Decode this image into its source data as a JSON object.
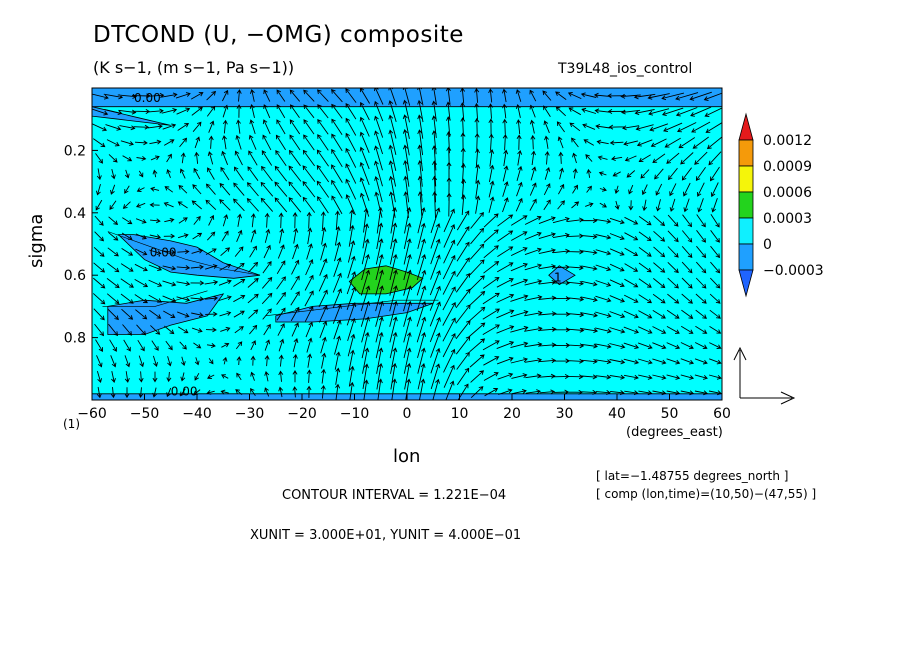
{
  "header": {
    "title": "DTCOND (U, −OMG) composite",
    "subtitle": "(K s−1, (m s−1, Pa s−1))",
    "run_name": "T39L48_ios_control"
  },
  "axes": {
    "xlabel": "lon",
    "xunits": "(degrees_east)",
    "ylabel": "sigma",
    "footnote": "(1)"
  },
  "info": {
    "lat": "[ lat=−1.48755 degrees_north ]",
    "comp": "[ comp (lon,time)=(10,50)−(47,55) ]",
    "contour_interval": "CONTOUR INTERVAL = 1.221E−04",
    "units": "XUNIT = 3.000E+01, YUNIT = 4.000E−01"
  },
  "chart_data": {
    "type": "heatmap",
    "subtype": "contour-fill with vector overlay",
    "x_range": [
      -60,
      60
    ],
    "y_range": [
      1.0,
      0.0
    ],
    "y_axis_inverted": true,
    "x_ticks": [
      -60,
      -50,
      -40,
      -30,
      -20,
      -10,
      0,
      10,
      20,
      30,
      40,
      50,
      60
    ],
    "x_tick_labels": [
      "−60",
      "−50",
      "−40",
      "−30",
      "−20",
      "−10",
      "0",
      "10",
      "20",
      "30",
      "40",
      "50",
      "60"
    ],
    "y_ticks": [
      0.2,
      0.4,
      0.6,
      0.8
    ],
    "y_tick_labels": [
      "0.2",
      "0.4",
      "0.6",
      "0.8"
    ],
    "colorbar": {
      "levels": [
        "0.0012",
        "0.0009",
        "0.0006",
        "0.0003",
        "0",
        "−0.0003"
      ],
      "colors": [
        "#e41a1c",
        "#f59a0a",
        "#f5f50a",
        "#23d31d",
        "#0ff0ff",
        "#1fa0ff",
        "#1f64ff"
      ]
    },
    "background_color": "#00ffff",
    "contour_labels": [
      {
        "x": -52,
        "y": 0.045,
        "text": "0.00"
      },
      {
        "x": -49,
        "y": 0.54,
        "text": "0.00"
      },
      {
        "x": -45,
        "y": 0.985,
        "text": "0.00"
      },
      {
        "x": 28,
        "y": 0.62,
        "text": "1"
      }
    ],
    "regions": [
      {
        "color": "#1fa0ff",
        "points": [
          [
            -60,
            0.0
          ],
          [
            60,
            0.0
          ],
          [
            60,
            0.06
          ],
          [
            -60,
            0.06
          ]
        ]
      },
      {
        "color": "#1fa0ff",
        "points": [
          [
            -60,
            0.06
          ],
          [
            -50,
            0.1
          ],
          [
            -45,
            0.12
          ],
          [
            -55,
            0.1
          ],
          [
            -60,
            0.09
          ]
        ]
      },
      {
        "color": "#1fa0ff",
        "points": [
          [
            -55,
            0.47
          ],
          [
            -50,
            0.55
          ],
          [
            -45,
            0.59
          ],
          [
            -40,
            0.6
          ],
          [
            -33,
            0.61
          ],
          [
            -28,
            0.6
          ],
          [
            -35,
            0.56
          ],
          [
            -40,
            0.51
          ],
          [
            -45,
            0.49
          ],
          [
            -52,
            0.47
          ]
        ]
      },
      {
        "color": "#1fa0ff",
        "points": [
          [
            -57,
            0.7
          ],
          [
            -50,
            0.68
          ],
          [
            -42,
            0.69
          ],
          [
            -35,
            0.66
          ],
          [
            -38,
            0.73
          ],
          [
            -45,
            0.76
          ],
          [
            -50,
            0.79
          ],
          [
            -57,
            0.79
          ]
        ]
      },
      {
        "color": "#1fa0ff",
        "points": [
          [
            -25,
            0.73
          ],
          [
            -18,
            0.7
          ],
          [
            -10,
            0.69
          ],
          [
            -2,
            0.69
          ],
          [
            5,
            0.69
          ],
          [
            0,
            0.72
          ],
          [
            -8,
            0.74
          ],
          [
            -18,
            0.75
          ],
          [
            -25,
            0.75
          ]
        ]
      },
      {
        "color": "#1fa0ff",
        "points": [
          [
            27,
            0.6
          ],
          [
            29,
            0.57
          ],
          [
            32,
            0.6
          ],
          [
            29,
            0.63
          ]
        ]
      },
      {
        "color": "#1fa0ff",
        "points": [
          [
            -60,
            0.98
          ],
          [
            60,
            0.98
          ],
          [
            60,
            1.0
          ],
          [
            -60,
            1.0
          ]
        ]
      },
      {
        "color": "#23d31d",
        "points": [
          [
            -11,
            0.62
          ],
          [
            -8,
            0.58
          ],
          [
            -4,
            0.57
          ],
          [
            0,
            0.59
          ],
          [
            3,
            0.61
          ],
          [
            1,
            0.64
          ],
          [
            -4,
            0.66
          ],
          [
            -9,
            0.66
          ]
        ]
      }
    ],
    "contour_lines": [
      {
        "points": [
          [
            -57,
            0.46
          ],
          [
            -47,
            0.52
          ],
          [
            -42,
            0.55
          ],
          [
            -35,
            0.58
          ],
          [
            -28,
            0.6
          ]
        ]
      },
      {
        "points": [
          [
            -58,
            0.7
          ],
          [
            -48,
            0.7
          ],
          [
            -38,
            0.65
          ]
        ]
      },
      {
        "points": [
          [
            -27,
            0.73
          ],
          [
            -12,
            0.7
          ],
          [
            -2,
            0.68
          ],
          [
            6,
            0.68
          ]
        ]
      }
    ],
    "vector_field": {
      "name": "(U, −OMG)",
      "reference_vector": {
        "u": 30,
        "w": 0.4
      },
      "columns": 45,
      "rows": 20
    }
  }
}
